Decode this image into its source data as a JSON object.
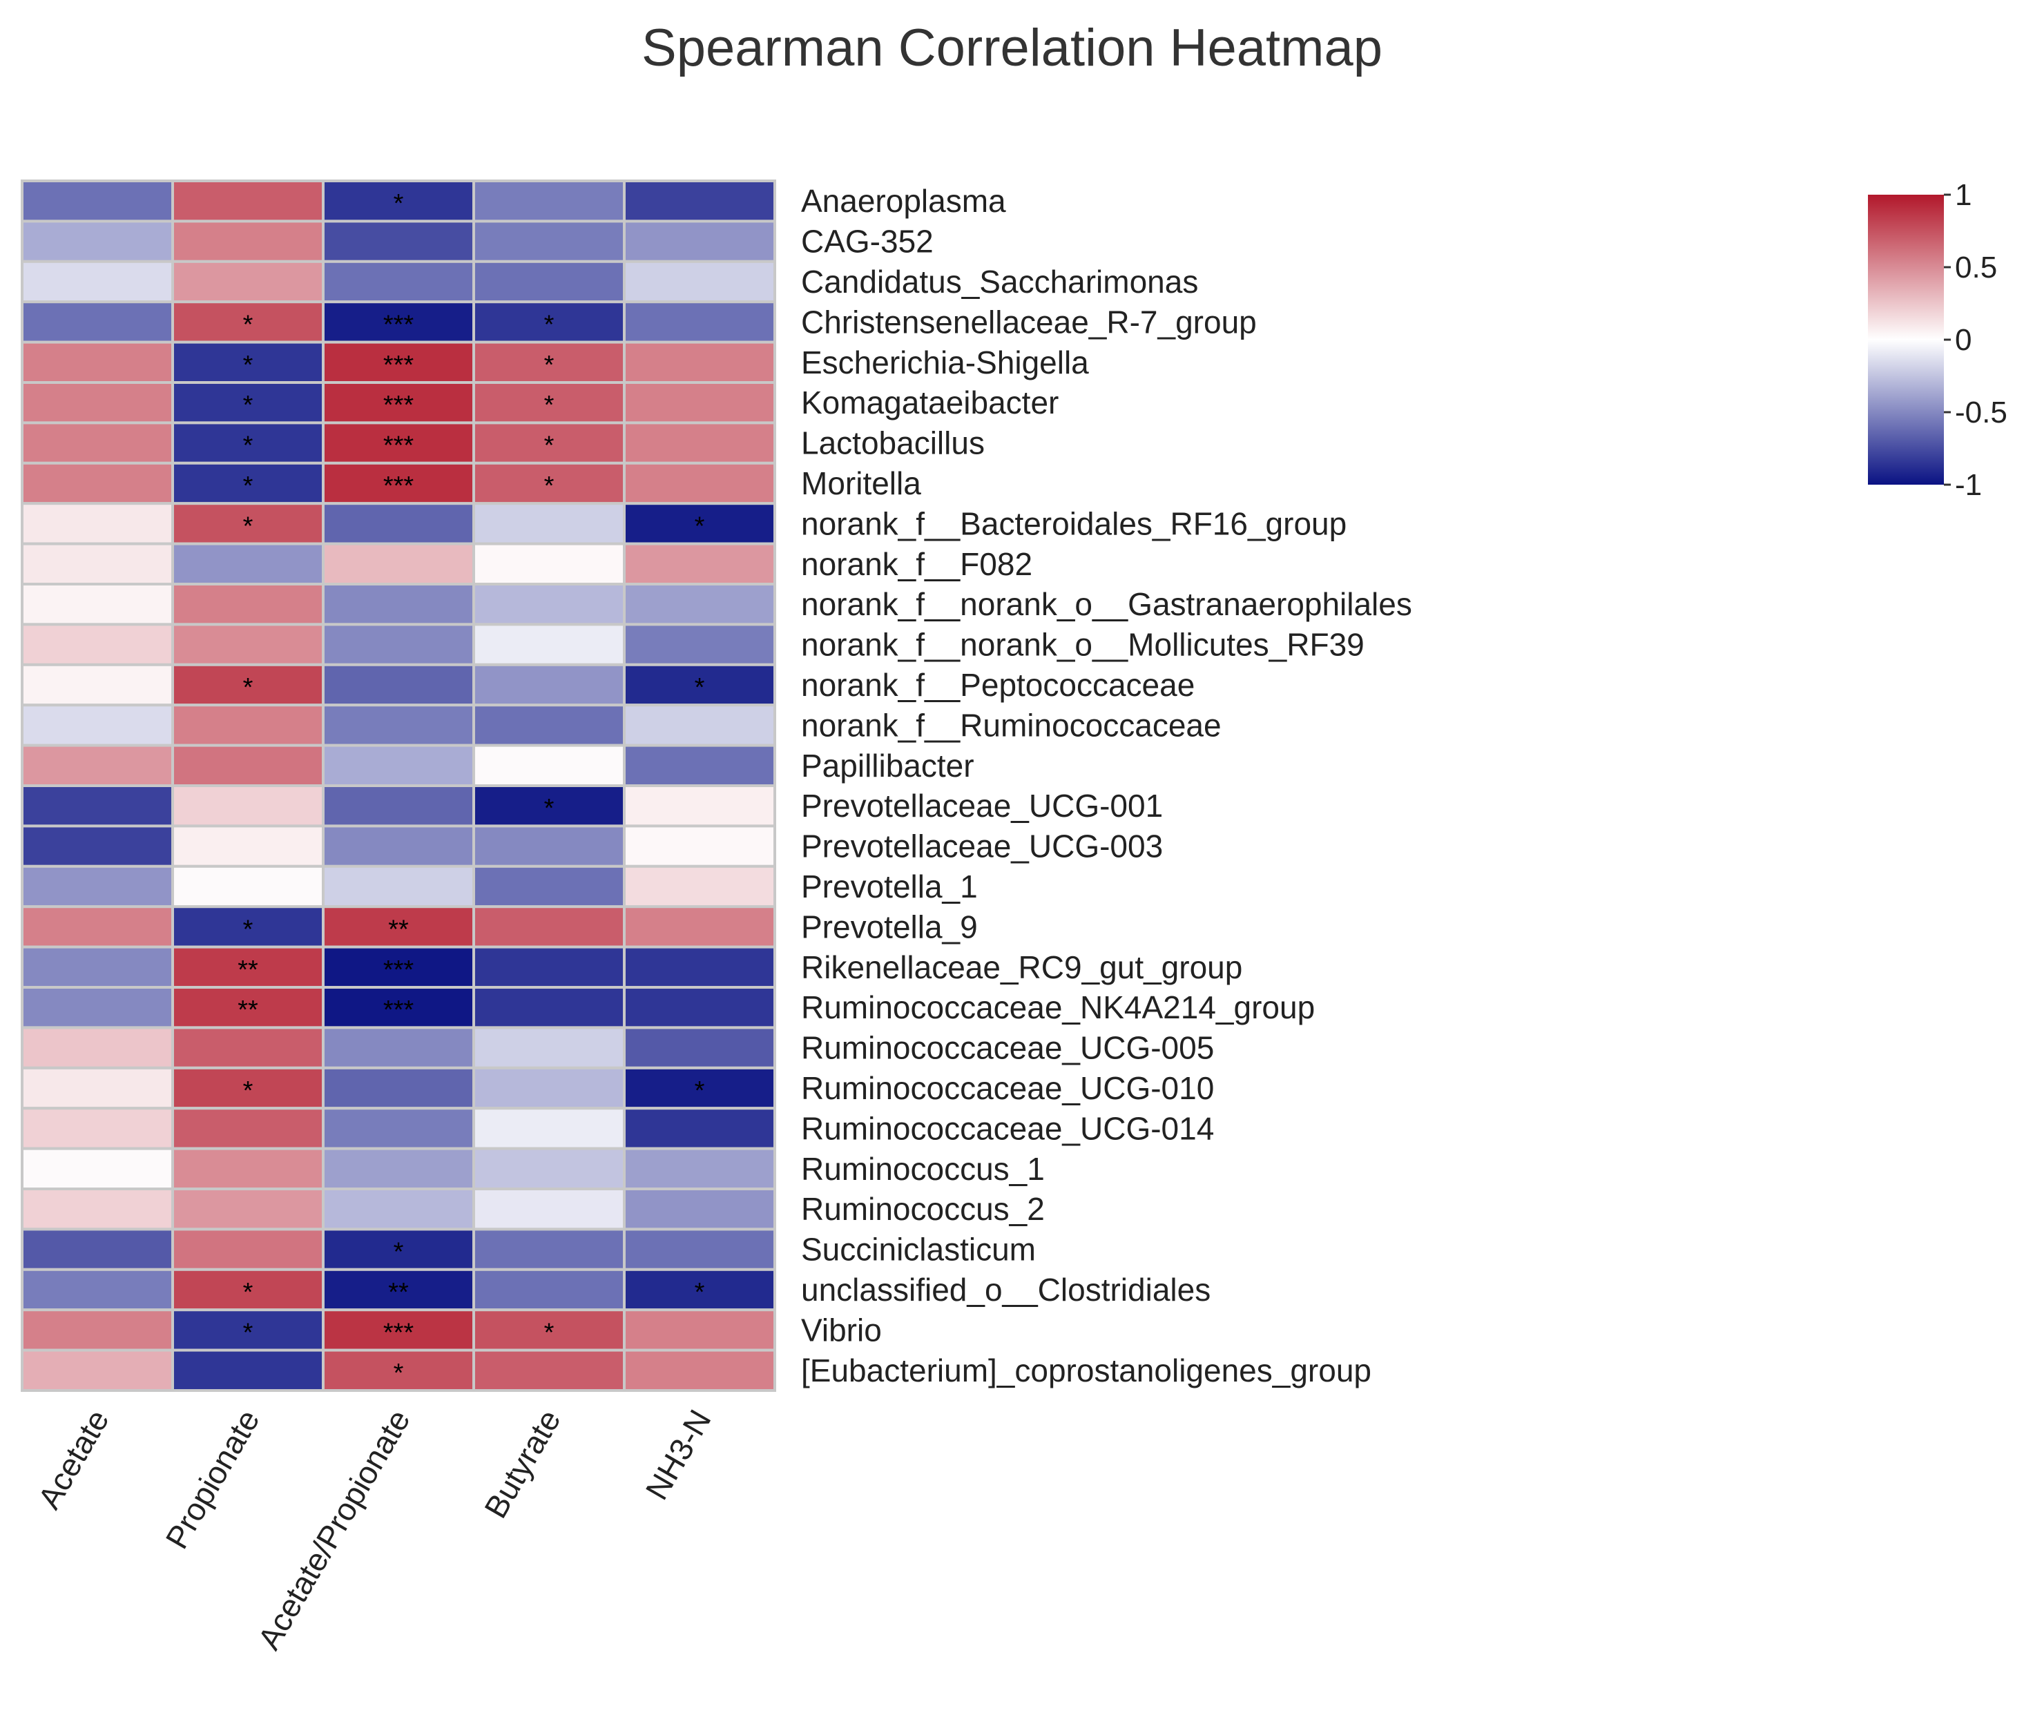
{
  "chart_data": {
    "type": "heatmap",
    "title": "Spearman Correlation Heatmap",
    "columns": [
      "Acetate",
      "Propionate",
      "Acetate/Propionate",
      "Butyrate",
      "NH3-N"
    ],
    "rows": [
      "Anaeroplasma",
      "CAG-352",
      "Candidatus_Saccharimonas",
      "Christensenellaceae_R-7_group",
      "Escherichia-Shigella",
      "Komagataeibacter",
      "Lactobacillus",
      "Moritella",
      "norank_f__Bacteroidales_RF16_group",
      "norank_f__F082",
      "norank_f__norank_o__Gastranaerophilales",
      "norank_f__norank_o__Mollicutes_RF39",
      "norank_f__Peptococcaceae",
      "norank_f__Ruminococcaceae",
      "Papillibacter",
      "Prevotellaceae_UCG-001",
      "Prevotellaceae_UCG-003",
      "Prevotella_1",
      "Prevotella_9",
      "Rikenellaceae_RC9_gut_group",
      "Ruminococcaceae_NK4A214_group",
      "Ruminococcaceae_UCG-005",
      "Ruminococcaceae_UCG-010",
      "Ruminococcaceae_UCG-014",
      "Ruminococcus_1",
      "Ruminococcus_2",
      "Succiniclasticum",
      "unclassified_o__Clostridiales",
      "Vibrio",
      "[Eubacterium]_coprostanoligenes_group"
    ],
    "values": [
      [
        -0.6,
        0.7,
        -0.85,
        -0.55,
        -0.8
      ],
      [
        -0.35,
        0.55,
        -0.75,
        -0.55,
        -0.45
      ],
      [
        -0.15,
        0.45,
        -0.6,
        -0.6,
        -0.2
      ],
      [
        -0.6,
        0.75,
        -0.95,
        -0.85,
        -0.6
      ],
      [
        0.55,
        -0.85,
        0.9,
        0.7,
        0.55
      ],
      [
        0.55,
        -0.85,
        0.9,
        0.7,
        0.55
      ],
      [
        0.55,
        -0.85,
        0.9,
        0.7,
        0.55
      ],
      [
        0.55,
        -0.85,
        0.9,
        0.7,
        0.55
      ],
      [
        0.1,
        0.75,
        -0.65,
        -0.2,
        -0.95
      ],
      [
        0.1,
        -0.45,
        0.3,
        0.03,
        0.45
      ],
      [
        0.05,
        0.55,
        -0.5,
        -0.3,
        -0.4
      ],
      [
        0.2,
        0.5,
        -0.5,
        -0.08,
        -0.55
      ],
      [
        0.05,
        0.8,
        -0.65,
        -0.45,
        -0.9
      ],
      [
        -0.15,
        0.55,
        -0.55,
        -0.6,
        -0.2
      ],
      [
        0.45,
        0.6,
        -0.35,
        0.02,
        -0.6
      ],
      [
        -0.8,
        0.2,
        -0.65,
        -0.95,
        0.07
      ],
      [
        -0.8,
        0.07,
        -0.5,
        -0.5,
        0.03
      ],
      [
        -0.45,
        0.02,
        -0.2,
        -0.6,
        0.15
      ],
      [
        0.55,
        -0.85,
        0.85,
        0.7,
        0.55
      ],
      [
        -0.5,
        0.85,
        -0.98,
        -0.85,
        -0.85
      ],
      [
        -0.5,
        0.85,
        -0.98,
        -0.85,
        -0.85
      ],
      [
        0.25,
        0.7,
        -0.5,
        -0.2,
        -0.7
      ],
      [
        0.1,
        0.8,
        -0.65,
        -0.3,
        -0.95
      ],
      [
        0.2,
        0.7,
        -0.55,
        -0.08,
        -0.85
      ],
      [
        0.02,
        0.5,
        -0.4,
        -0.25,
        -0.4
      ],
      [
        0.2,
        0.45,
        -0.3,
        -0.1,
        -0.45
      ],
      [
        -0.7,
        0.6,
        -0.9,
        -0.6,
        -0.6
      ],
      [
        -0.55,
        0.8,
        -0.95,
        -0.6,
        -0.9
      ],
      [
        0.55,
        -0.85,
        0.88,
        0.75,
        0.55
      ],
      [
        0.35,
        -0.85,
        0.75,
        0.7,
        0.55
      ]
    ],
    "significance": [
      [
        "",
        "",
        "*",
        "",
        ""
      ],
      [
        "",
        "",
        "",
        "",
        ""
      ],
      [
        "",
        "",
        "",
        "",
        ""
      ],
      [
        "",
        "*",
        "***",
        "*",
        ""
      ],
      [
        "",
        "*",
        "***",
        "*",
        ""
      ],
      [
        "",
        "*",
        "***",
        "*",
        ""
      ],
      [
        "",
        "*",
        "***",
        "*",
        ""
      ],
      [
        "",
        "*",
        "***",
        "*",
        ""
      ],
      [
        "",
        "*",
        "",
        "",
        "*"
      ],
      [
        "",
        "",
        "",
        "",
        ""
      ],
      [
        "",
        "",
        "",
        "",
        ""
      ],
      [
        "",
        "",
        "",
        "",
        ""
      ],
      [
        "",
        "*",
        "",
        "",
        "*"
      ],
      [
        "",
        "",
        "",
        "",
        ""
      ],
      [
        "",
        "",
        "",
        "",
        ""
      ],
      [
        "",
        "",
        "",
        "*",
        ""
      ],
      [
        "",
        "",
        "",
        "",
        ""
      ],
      [
        "",
        "",
        "",
        "",
        ""
      ],
      [
        "",
        "*",
        "**",
        "",
        ""
      ],
      [
        "",
        "**",
        "***",
        "",
        ""
      ],
      [
        "",
        "**",
        "***",
        "",
        ""
      ],
      [
        "",
        "",
        "",
        "",
        ""
      ],
      [
        "",
        "*",
        "",
        "",
        "*"
      ],
      [
        "",
        "",
        "",
        "",
        ""
      ],
      [
        "",
        "",
        "",
        "",
        ""
      ],
      [
        "",
        "",
        "",
        "",
        ""
      ],
      [
        "",
        "",
        "*",
        "",
        ""
      ],
      [
        "",
        "*",
        "**",
        "",
        "*"
      ],
      [
        "",
        "*",
        "***",
        "*",
        ""
      ],
      [
        "",
        "",
        "*",
        "",
        ""
      ]
    ],
    "colorbar": {
      "range": [
        -1,
        1
      ],
      "ticks": [
        "1",
        "0.5",
        "0",
        "-0.5",
        "-1"
      ],
      "colors": {
        "low": "#0a1283",
        "mid": "#ffffff",
        "high": "#b2182b"
      }
    },
    "legend_position": "top-right",
    "grid": true,
    "cell_border_color": "#c8c8c8"
  }
}
